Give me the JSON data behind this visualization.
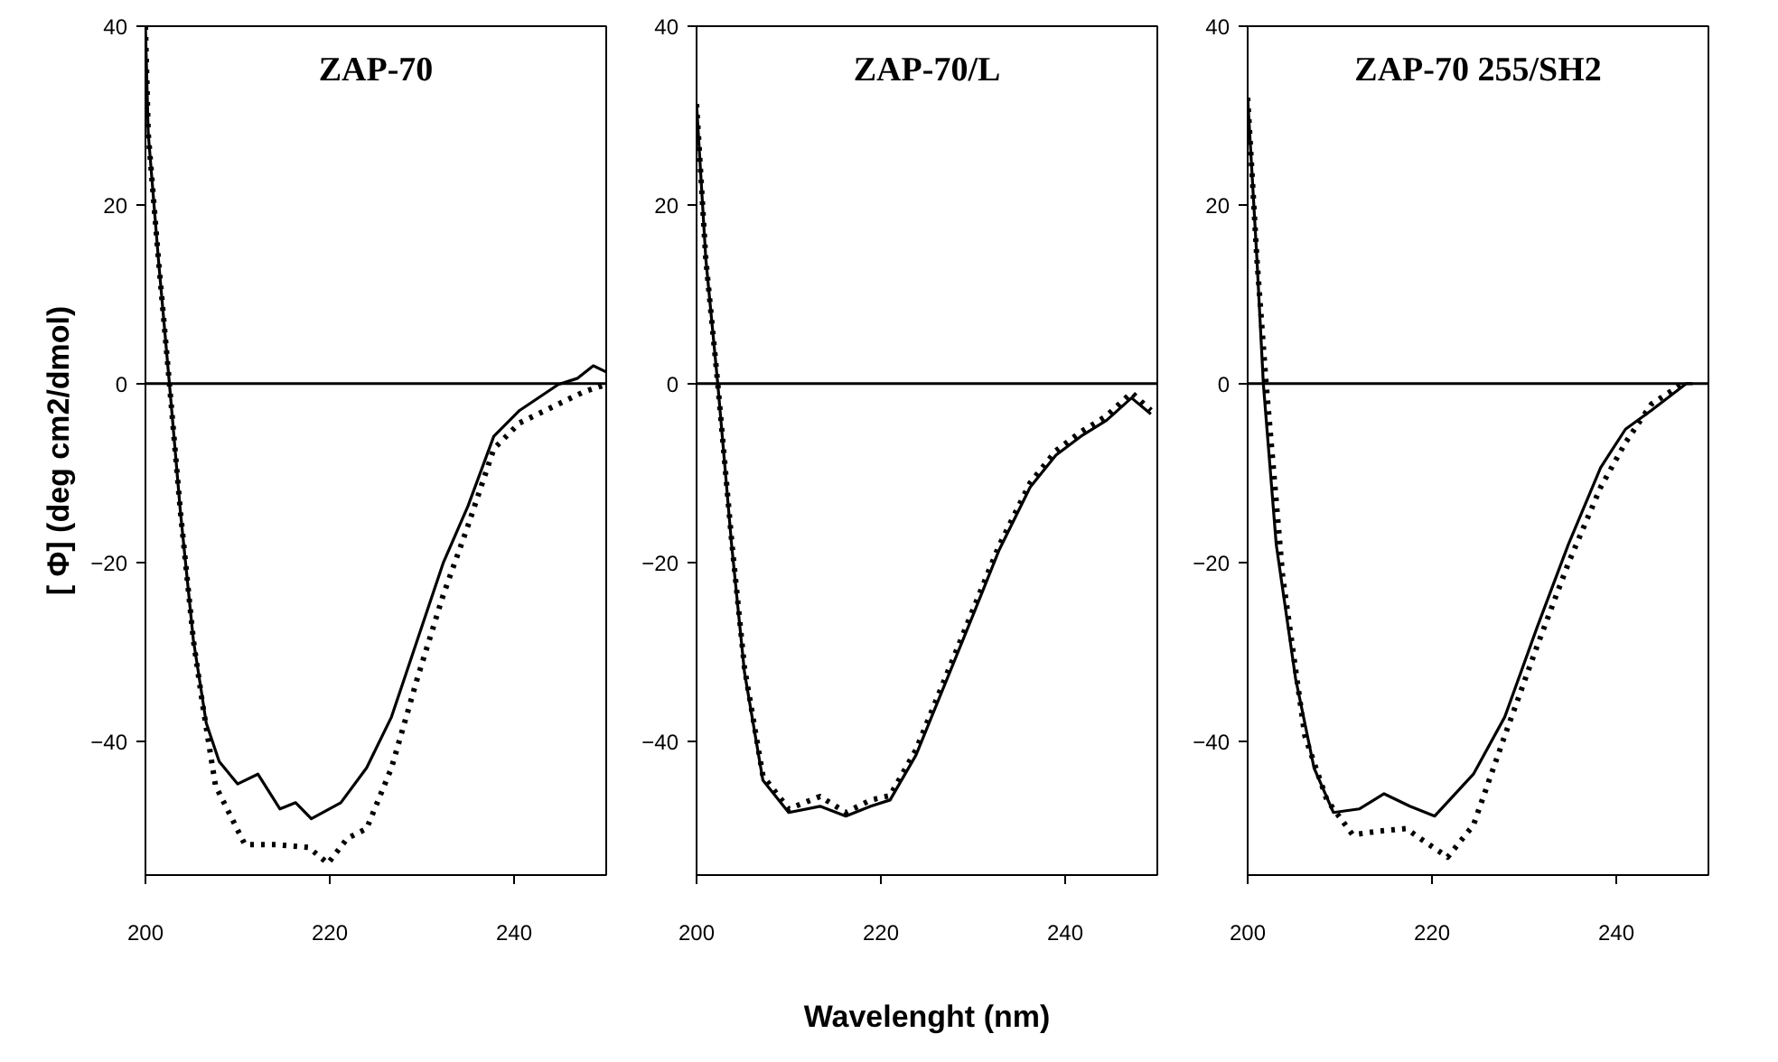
{
  "chart_data": [
    {
      "type": "line",
      "title": "ZAP-70",
      "ylabel": "[ Φ] (deg cm2/dmol)",
      "xlim": [
        200,
        250
      ],
      "ylim": [
        -55,
        40
      ],
      "xticks": [
        200,
        220,
        240
      ],
      "yticks": [
        -40,
        -20,
        0,
        20,
        40
      ],
      "grid": false,
      "ref_lines": [
        {
          "axis": "y",
          "value": 0,
          "color": "#000000",
          "line_style": "solid"
        }
      ],
      "series": [
        {
          "color": "#000000",
          "line_style": "solid",
          "x": [
            200,
            200.3,
            201.4,
            202.6,
            203.8,
            205.2,
            206.6,
            208,
            210,
            212.2,
            214.6,
            216.3,
            218,
            221.2,
            224,
            226.7,
            229.5,
            232.3,
            235,
            237.8,
            240.6,
            244.8,
            246.9,
            248.6,
            250
          ],
          "values": [
            40,
            28,
            14,
            0,
            -14.4,
            -28.7,
            -38,
            -42.3,
            -44.8,
            -43.7,
            -47.6,
            -46.9,
            -48.7,
            -46.9,
            -43,
            -37.3,
            -28.7,
            -20.1,
            -13.7,
            -5.9,
            -3,
            -0.1,
            0.6,
            2,
            1.3
          ]
        },
        {
          "color": "#000000",
          "line_style": "dotted",
          "x": [
            200,
            200.3,
            201.4,
            202.6,
            203.8,
            205.2,
            206.2,
            207.6,
            210.8,
            214.2,
            217.7,
            219.8,
            221.9,
            224,
            226.7,
            229.5,
            232.3,
            235,
            237.8,
            240.6,
            244.8,
            247.6,
            250
          ],
          "values": [
            40,
            28,
            14,
            0,
            -14.4,
            -28.7,
            -35.9,
            -45,
            -51.6,
            -51.6,
            -51.9,
            -53.7,
            -50.9,
            -49.8,
            -43,
            -33,
            -23.7,
            -15.9,
            -7.3,
            -4.4,
            -2.3,
            -0.9,
            -0.1
          ]
        }
      ]
    },
    {
      "type": "line",
      "title": "ZAP-70/L",
      "xlabel": "Wavelenght (nm)",
      "xlim": [
        200,
        250
      ],
      "ylim": [
        -55,
        40
      ],
      "xticks": [
        200,
        220,
        240
      ],
      "yticks": [
        -40,
        -20,
        0,
        20,
        40
      ],
      "grid": false,
      "ref_lines": [
        {
          "axis": "y",
          "value": 0,
          "color": "#000000",
          "line_style": "solid"
        }
      ],
      "series": [
        {
          "color": "#000000",
          "line_style": "solid",
          "x": [
            200,
            201,
            202.3,
            203.8,
            205.2,
            207.2,
            210,
            213.4,
            216.2,
            218.9,
            221,
            223.8,
            227.2,
            230,
            232.8,
            236.2,
            239,
            241.7,
            244.5,
            247.2,
            249.3
          ],
          "values": [
            31.3,
            14,
            0,
            -18,
            -32.3,
            -44.4,
            -48,
            -47.3,
            -48.4,
            -47.3,
            -46.6,
            -41.6,
            -33,
            -25.9,
            -18.7,
            -11.6,
            -8,
            -5.9,
            -4.1,
            -1.6,
            -3.4
          ]
        },
        {
          "color": "#000000",
          "line_style": "dotted",
          "x": [
            200,
            201,
            202.3,
            203.8,
            205.2,
            207.2,
            210,
            213.4,
            216.2,
            218.9,
            221,
            223.8,
            227.2,
            230,
            232.8,
            236.2,
            239,
            241.7,
            244.5,
            247.2,
            249.3
          ],
          "values": [
            31.3,
            14,
            0,
            -17.5,
            -31.8,
            -43.9,
            -47.6,
            -46.2,
            -48,
            -46.6,
            -46.1,
            -41,
            -32.4,
            -25.3,
            -18.2,
            -11.1,
            -7.5,
            -5.4,
            -3.6,
            -1,
            -3
          ]
        }
      ]
    },
    {
      "type": "line",
      "title": "ZAP-70 255/SH2",
      "xlim": [
        200,
        250
      ],
      "ylim": [
        -55,
        40
      ],
      "xticks": [
        200,
        220,
        240
      ],
      "yticks": [
        -40,
        -20,
        0,
        20,
        40
      ],
      "grid": false,
      "ref_lines": [
        {
          "axis": "y",
          "value": 0,
          "color": "#000000",
          "line_style": "solid"
        }
      ],
      "series": [
        {
          "color": "#000000",
          "line_style": "solid",
          "x": [
            200,
            201,
            201.7,
            203.1,
            205.2,
            207.2,
            209.3,
            212.1,
            214.8,
            217.6,
            220.3,
            224.5,
            227.9,
            231.4,
            234.8,
            238.3,
            241,
            243.8,
            247.6,
            248.3
          ],
          "values": [
            32,
            14,
            0,
            -18,
            -33,
            -43,
            -48,
            -47.6,
            -45.9,
            -47.3,
            -48.4,
            -43.7,
            -37.3,
            -27.3,
            -18,
            -9.4,
            -5.1,
            -3,
            0,
            0
          ]
        },
        {
          "color": "#000000",
          "line_style": "dotted",
          "x": [
            200,
            201,
            202,
            203.8,
            206.2,
            208.6,
            211.4,
            214.1,
            217.2,
            219.7,
            221.7,
            224.5,
            227.9,
            231.4,
            234.8,
            238.3,
            241,
            243.8,
            247.2
          ],
          "values": [
            32,
            14,
            0,
            -21.6,
            -39.4,
            -46.6,
            -50.5,
            -50.1,
            -49.8,
            -51.6,
            -53,
            -49.4,
            -39.4,
            -29.4,
            -20.1,
            -11.6,
            -6.6,
            -2.3,
            0
          ]
        }
      ]
    }
  ]
}
